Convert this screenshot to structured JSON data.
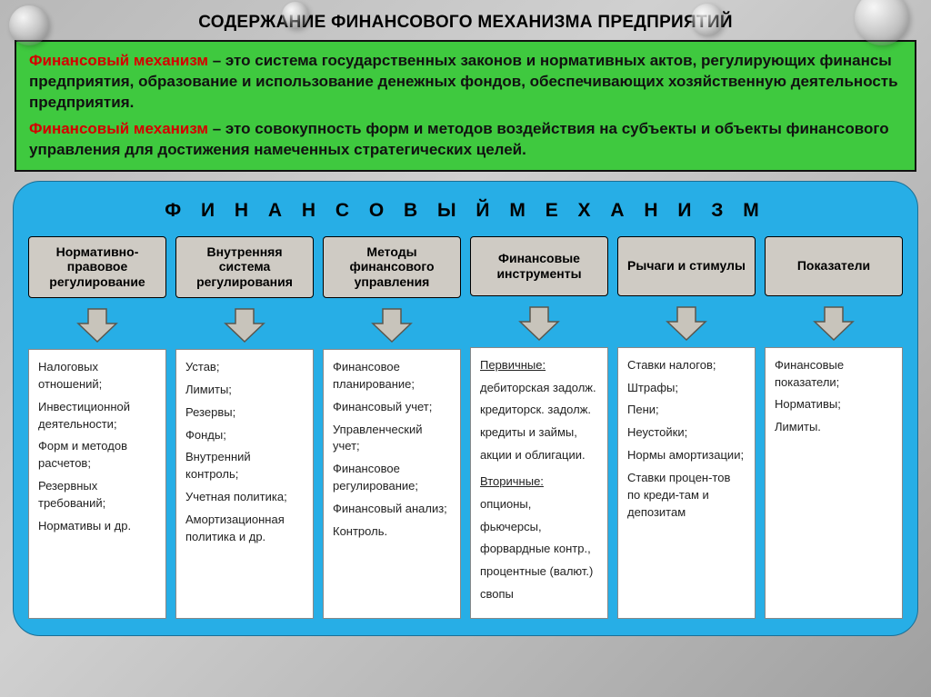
{
  "title": "СОДЕРЖАНИЕ ФИНАНСОВОГО МЕХАНИЗМА ПРЕДПРИЯТИЙ",
  "definitions": {
    "term": "Финансовый механизм",
    "def1": " – это система государственных законов и нормативных актов, регулирующих финансы предприятия, образование и использование денежных фондов, обеспечивающих хозяйственную деятельность предприятия.",
    "def2": " – это совокупность форм и методов воздействия на субъекты и объекты финансового управления для достижения намеченных стратегических целей."
  },
  "panel_title": "Ф И Н А Н С О В Ы Й   М Е Х А Н И З М",
  "colors": {
    "green": "#3fc93f",
    "blue": "#27aee6",
    "header_box": "#cfcbc4",
    "arrow_fill": "#c8c4bb",
    "arrow_stroke": "#5a564d",
    "red": "#d40000"
  },
  "columns": [
    {
      "header": "Нормативно-правовое регулирование",
      "items": [
        "Налоговых отношений;",
        "Инвестиционной деятельности;",
        "Форм и методов расчетов;",
        "Резервных требований;",
        "Нормативы и др."
      ]
    },
    {
      "header": "Внутренняя система регулирования",
      "items": [
        "Устав;",
        "Лимиты;",
        "Резервы;",
        "Фонды;",
        "Внутренний контроль;",
        "Учетная политика;",
        "Амортизационная политика и др."
      ]
    },
    {
      "header": "Методы финансового управления",
      "items": [
        "Финансовое планирование;",
        "Финансовый учет;",
        "Управленческий учет;",
        "Финансовое регулирование;",
        "Финансовый анализ;",
        "Контроль."
      ]
    },
    {
      "header": "Финансовые инструменты",
      "groups": [
        {
          "label": "Первичные:",
          "items": [
            "дебиторская задолж.",
            "кредиторск. задолж.",
            "кредиты и займы,",
            "акции и облигации."
          ]
        },
        {
          "label": "Вторичные:",
          "items": [
            "опционы,",
            "фьючерсы,",
            "форвардные контр.,",
            "процентные (валют.)",
            "свопы"
          ]
        }
      ]
    },
    {
      "header": "Рычаги и стимулы",
      "items": [
        "Ставки налогов;",
        "Штрафы;",
        "Пени;",
        "Неустойки;",
        "Нормы амортизации;",
        "Ставки процен-тов по креди-там и депозитам"
      ]
    },
    {
      "header": "Показатели",
      "items": [
        "Финансовые показатели;",
        "Нормативы;",
        "Лимиты."
      ]
    }
  ]
}
